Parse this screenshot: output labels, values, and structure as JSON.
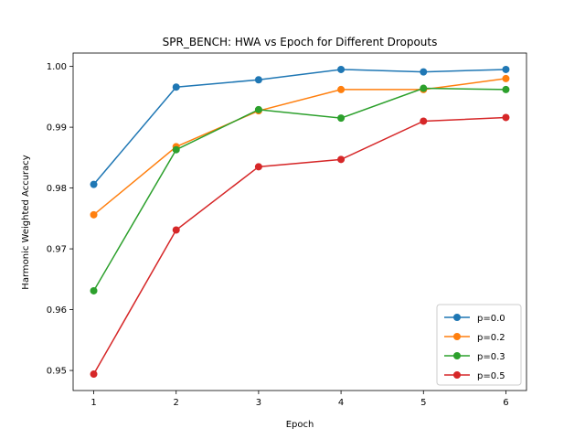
{
  "chart_data": {
    "type": "line",
    "title": "SPR_BENCH: HWA vs Epoch for Different Dropouts",
    "xlabel": "Epoch",
    "ylabel": "Harmonic Weighted Accuracy",
    "x": [
      1,
      2,
      3,
      4,
      5,
      6
    ],
    "xlim": [
      0.75,
      6.25
    ],
    "ylim": [
      0.9467,
      1.0022
    ],
    "xticks": [
      1,
      2,
      3,
      4,
      5,
      6
    ],
    "yticks": [
      0.95,
      0.96,
      0.97,
      0.98,
      0.99,
      1.0
    ],
    "ytick_labels": [
      "0.95",
      "0.96",
      "0.97",
      "0.98",
      "0.99",
      "1.00"
    ],
    "grid": false,
    "legend_position": "lower-right",
    "series": [
      {
        "name": "p=0.0",
        "color": "#1f77b4",
        "values": [
          0.9806,
          0.9966,
          0.9978,
          0.9995,
          0.9991,
          0.9995
        ]
      },
      {
        "name": "p=0.2",
        "color": "#ff7f0e",
        "values": [
          0.9756,
          0.9868,
          0.9927,
          0.9962,
          0.9962,
          0.998
        ]
      },
      {
        "name": "p=0.3",
        "color": "#2ca02c",
        "values": [
          0.9631,
          0.9863,
          0.9929,
          0.9915,
          0.9964,
          0.9962
        ]
      },
      {
        "name": "p=0.5",
        "color": "#d62728",
        "values": [
          0.9494,
          0.9731,
          0.9835,
          0.9847,
          0.991,
          0.9916
        ]
      }
    ]
  }
}
